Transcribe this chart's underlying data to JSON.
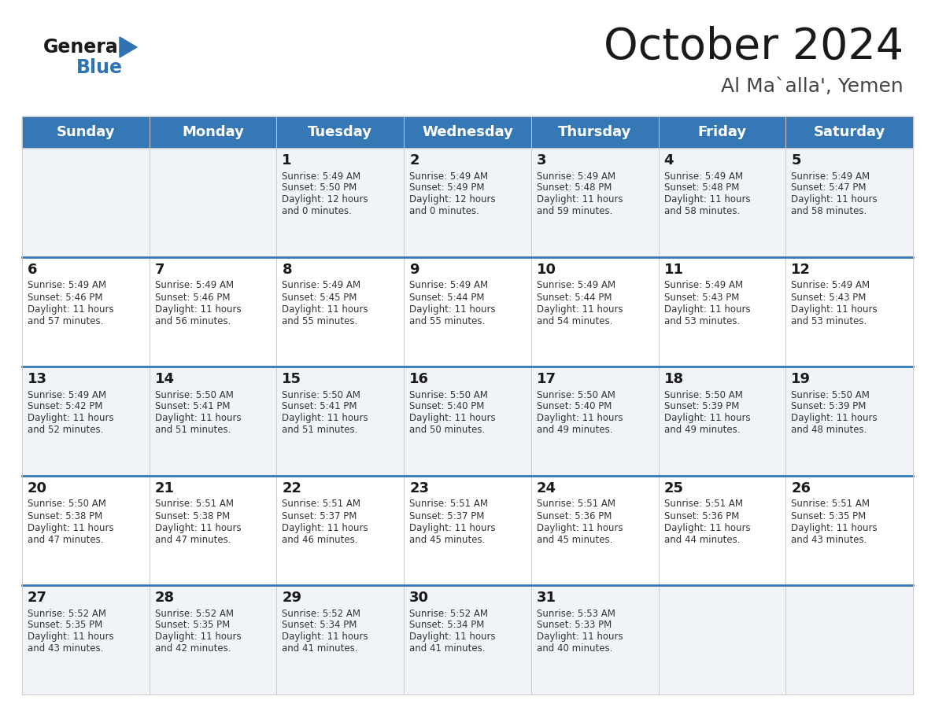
{
  "title": "October 2024",
  "subtitle": "Al Ma`alla', Yemen",
  "header_bg_color": "#3578b5",
  "header_text_color": "#ffffff",
  "row_bg_even": "#ffffff",
  "row_bg_odd": "#f0f4f8",
  "day_names": [
    "Sunday",
    "Monday",
    "Tuesday",
    "Wednesday",
    "Thursday",
    "Friday",
    "Saturday"
  ],
  "title_color": "#1a1a1a",
  "subtitle_color": "#444444",
  "cell_text_color": "#333333",
  "day_num_color": "#1a1a1a",
  "divider_color": "#3578b5",
  "grid_color": "#cccccc",
  "logo_general_color": "#1a1a1a",
  "logo_blue_color": "#2e74b5",
  "logo_triangle_color": "#2e74b5",
  "weeks": [
    {
      "days": [
        {
          "date": "",
          "sunrise": "",
          "sunset": "",
          "daylight_hours": 0,
          "daylight_minutes": 0
        },
        {
          "date": "",
          "sunrise": "",
          "sunset": "",
          "daylight_hours": 0,
          "daylight_minutes": 0
        },
        {
          "date": "1",
          "sunrise": "5:49 AM",
          "sunset": "5:50 PM",
          "daylight_hours": 12,
          "daylight_minutes": 0
        },
        {
          "date": "2",
          "sunrise": "5:49 AM",
          "sunset": "5:49 PM",
          "daylight_hours": 12,
          "daylight_minutes": 0
        },
        {
          "date": "3",
          "sunrise": "5:49 AM",
          "sunset": "5:48 PM",
          "daylight_hours": 11,
          "daylight_minutes": 59
        },
        {
          "date": "4",
          "sunrise": "5:49 AM",
          "sunset": "5:48 PM",
          "daylight_hours": 11,
          "daylight_minutes": 58
        },
        {
          "date": "5",
          "sunrise": "5:49 AM",
          "sunset": "5:47 PM",
          "daylight_hours": 11,
          "daylight_minutes": 58
        }
      ]
    },
    {
      "days": [
        {
          "date": "6",
          "sunrise": "5:49 AM",
          "sunset": "5:46 PM",
          "daylight_hours": 11,
          "daylight_minutes": 57
        },
        {
          "date": "7",
          "sunrise": "5:49 AM",
          "sunset": "5:46 PM",
          "daylight_hours": 11,
          "daylight_minutes": 56
        },
        {
          "date": "8",
          "sunrise": "5:49 AM",
          "sunset": "5:45 PM",
          "daylight_hours": 11,
          "daylight_minutes": 55
        },
        {
          "date": "9",
          "sunrise": "5:49 AM",
          "sunset": "5:44 PM",
          "daylight_hours": 11,
          "daylight_minutes": 55
        },
        {
          "date": "10",
          "sunrise": "5:49 AM",
          "sunset": "5:44 PM",
          "daylight_hours": 11,
          "daylight_minutes": 54
        },
        {
          "date": "11",
          "sunrise": "5:49 AM",
          "sunset": "5:43 PM",
          "daylight_hours": 11,
          "daylight_minutes": 53
        },
        {
          "date": "12",
          "sunrise": "5:49 AM",
          "sunset": "5:43 PM",
          "daylight_hours": 11,
          "daylight_minutes": 53
        }
      ]
    },
    {
      "days": [
        {
          "date": "13",
          "sunrise": "5:49 AM",
          "sunset": "5:42 PM",
          "daylight_hours": 11,
          "daylight_minutes": 52
        },
        {
          "date": "14",
          "sunrise": "5:50 AM",
          "sunset": "5:41 PM",
          "daylight_hours": 11,
          "daylight_minutes": 51
        },
        {
          "date": "15",
          "sunrise": "5:50 AM",
          "sunset": "5:41 PM",
          "daylight_hours": 11,
          "daylight_minutes": 51
        },
        {
          "date": "16",
          "sunrise": "5:50 AM",
          "sunset": "5:40 PM",
          "daylight_hours": 11,
          "daylight_minutes": 50
        },
        {
          "date": "17",
          "sunrise": "5:50 AM",
          "sunset": "5:40 PM",
          "daylight_hours": 11,
          "daylight_minutes": 49
        },
        {
          "date": "18",
          "sunrise": "5:50 AM",
          "sunset": "5:39 PM",
          "daylight_hours": 11,
          "daylight_minutes": 49
        },
        {
          "date": "19",
          "sunrise": "5:50 AM",
          "sunset": "5:39 PM",
          "daylight_hours": 11,
          "daylight_minutes": 48
        }
      ]
    },
    {
      "days": [
        {
          "date": "20",
          "sunrise": "5:50 AM",
          "sunset": "5:38 PM",
          "daylight_hours": 11,
          "daylight_minutes": 47
        },
        {
          "date": "21",
          "sunrise": "5:51 AM",
          "sunset": "5:38 PM",
          "daylight_hours": 11,
          "daylight_minutes": 47
        },
        {
          "date": "22",
          "sunrise": "5:51 AM",
          "sunset": "5:37 PM",
          "daylight_hours": 11,
          "daylight_minutes": 46
        },
        {
          "date": "23",
          "sunrise": "5:51 AM",
          "sunset": "5:37 PM",
          "daylight_hours": 11,
          "daylight_minutes": 45
        },
        {
          "date": "24",
          "sunrise": "5:51 AM",
          "sunset": "5:36 PM",
          "daylight_hours": 11,
          "daylight_minutes": 45
        },
        {
          "date": "25",
          "sunrise": "5:51 AM",
          "sunset": "5:36 PM",
          "daylight_hours": 11,
          "daylight_minutes": 44
        },
        {
          "date": "26",
          "sunrise": "5:51 AM",
          "sunset": "5:35 PM",
          "daylight_hours": 11,
          "daylight_minutes": 43
        }
      ]
    },
    {
      "days": [
        {
          "date": "27",
          "sunrise": "5:52 AM",
          "sunset": "5:35 PM",
          "daylight_hours": 11,
          "daylight_minutes": 43
        },
        {
          "date": "28",
          "sunrise": "5:52 AM",
          "sunset": "5:35 PM",
          "daylight_hours": 11,
          "daylight_minutes": 42
        },
        {
          "date": "29",
          "sunrise": "5:52 AM",
          "sunset": "5:34 PM",
          "daylight_hours": 11,
          "daylight_minutes": 41
        },
        {
          "date": "30",
          "sunrise": "5:52 AM",
          "sunset": "5:34 PM",
          "daylight_hours": 11,
          "daylight_minutes": 41
        },
        {
          "date": "31",
          "sunrise": "5:53 AM",
          "sunset": "5:33 PM",
          "daylight_hours": 11,
          "daylight_minutes": 40
        },
        {
          "date": "",
          "sunrise": "",
          "sunset": "",
          "daylight_hours": 0,
          "daylight_minutes": 0
        },
        {
          "date": "",
          "sunrise": "",
          "sunset": "",
          "daylight_hours": 0,
          "daylight_minutes": 0
        }
      ]
    }
  ]
}
